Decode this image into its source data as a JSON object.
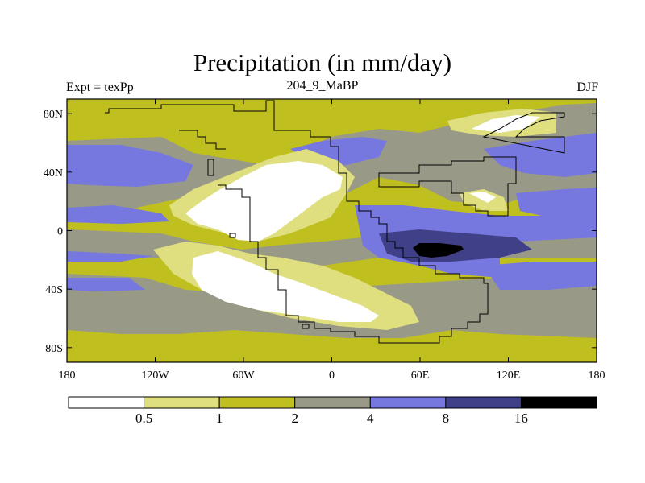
{
  "title": "Precipitation (in mm/day)",
  "left_subtitle": "Expt = texPp",
  "center_subtitle": "204_9_MaBP",
  "right_subtitle": "DJF",
  "lat_ticks": [
    "80N",
    "40N",
    "0",
    "40S",
    "80S"
  ],
  "lat_values": [
    80,
    40,
    0,
    -40,
    -80
  ],
  "lon_ticks": [
    "180",
    "120W",
    "60W",
    "0",
    "60E",
    "120E",
    "180"
  ],
  "lon_values": [
    -180,
    -120,
    -60,
    0,
    60,
    120,
    180
  ],
  "colorbar": {
    "labels": [
      "0.5",
      "1",
      "2",
      "4",
      "8",
      "16"
    ],
    "colors": [
      "#ffffff",
      "#dfdf80",
      "#bfbf20",
      "#999988",
      "#7777e0",
      "#404088",
      "#000000"
    ]
  },
  "colors": {
    "dry": "#ffffff",
    "light": "#dfdf80",
    "yellow": "#bfbf20",
    "gray": "#999988",
    "blue": "#7777e0",
    "navy": "#404088",
    "black": "#000000"
  }
}
